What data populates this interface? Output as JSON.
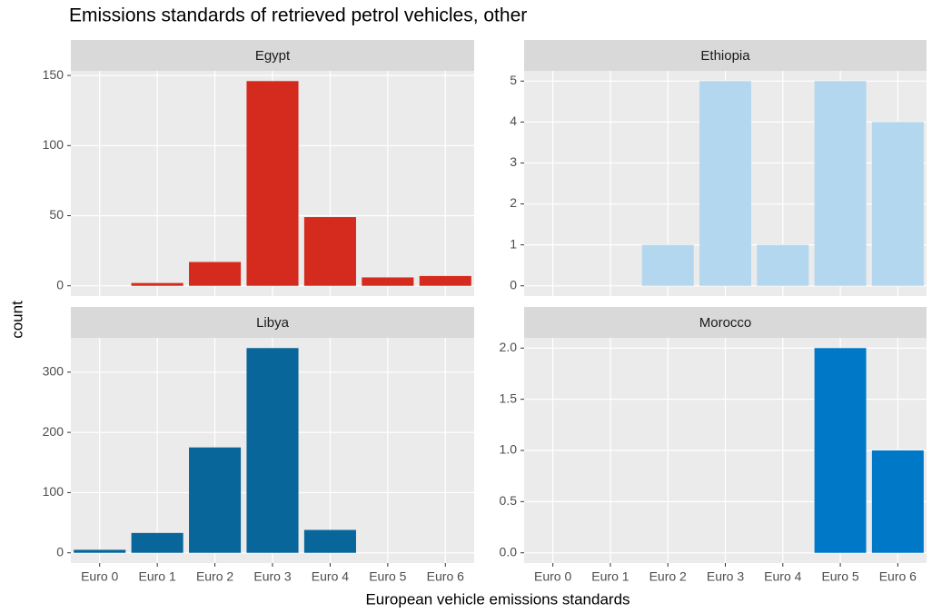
{
  "title": "Emissions standards of retrieved petrol vehicles, other",
  "xlabel": "European vehicle emissions standards",
  "ylabel": "count",
  "categories": [
    "Euro 0",
    "Euro 1",
    "Euro 2",
    "Euro 3",
    "Euro 4",
    "Euro 5",
    "Euro 6"
  ],
  "chart_data": [
    {
      "type": "bar",
      "title": "Egypt",
      "color": "#d52b1e",
      "values": [
        null,
        2,
        17,
        146,
        49,
        6,
        7
      ],
      "ylim": [
        -7.3,
        153.3
      ],
      "yticks": [
        0,
        50,
        100,
        150
      ],
      "grid": true
    },
    {
      "type": "bar",
      "title": "Ethiopia",
      "color": "#b3d7ee",
      "values": [
        null,
        null,
        1,
        5,
        1,
        5,
        4
      ],
      "ylim": [
        -0.25,
        5.25
      ],
      "yticks": [
        0,
        1,
        2,
        3,
        4,
        5
      ],
      "grid": true
    },
    {
      "type": "bar",
      "title": "Libya",
      "color": "#09669a",
      "values": [
        5,
        33,
        175,
        340,
        38,
        null,
        null
      ],
      "ylim": [
        -17,
        357
      ],
      "yticks": [
        0,
        100,
        200,
        300
      ],
      "grid": true
    },
    {
      "type": "bar",
      "title": "Morocco",
      "color": "#0078c8",
      "values": [
        null,
        null,
        null,
        null,
        null,
        2,
        1
      ],
      "ylim": [
        -0.1,
        2.1
      ],
      "yticks": [
        {
          "value": 0,
          "label": "0.0"
        },
        0.5,
        {
          "value": 1,
          "label": "1.0"
        },
        1.5,
        {
          "value": 2,
          "label": "2.0"
        }
      ],
      "grid": true
    }
  ]
}
